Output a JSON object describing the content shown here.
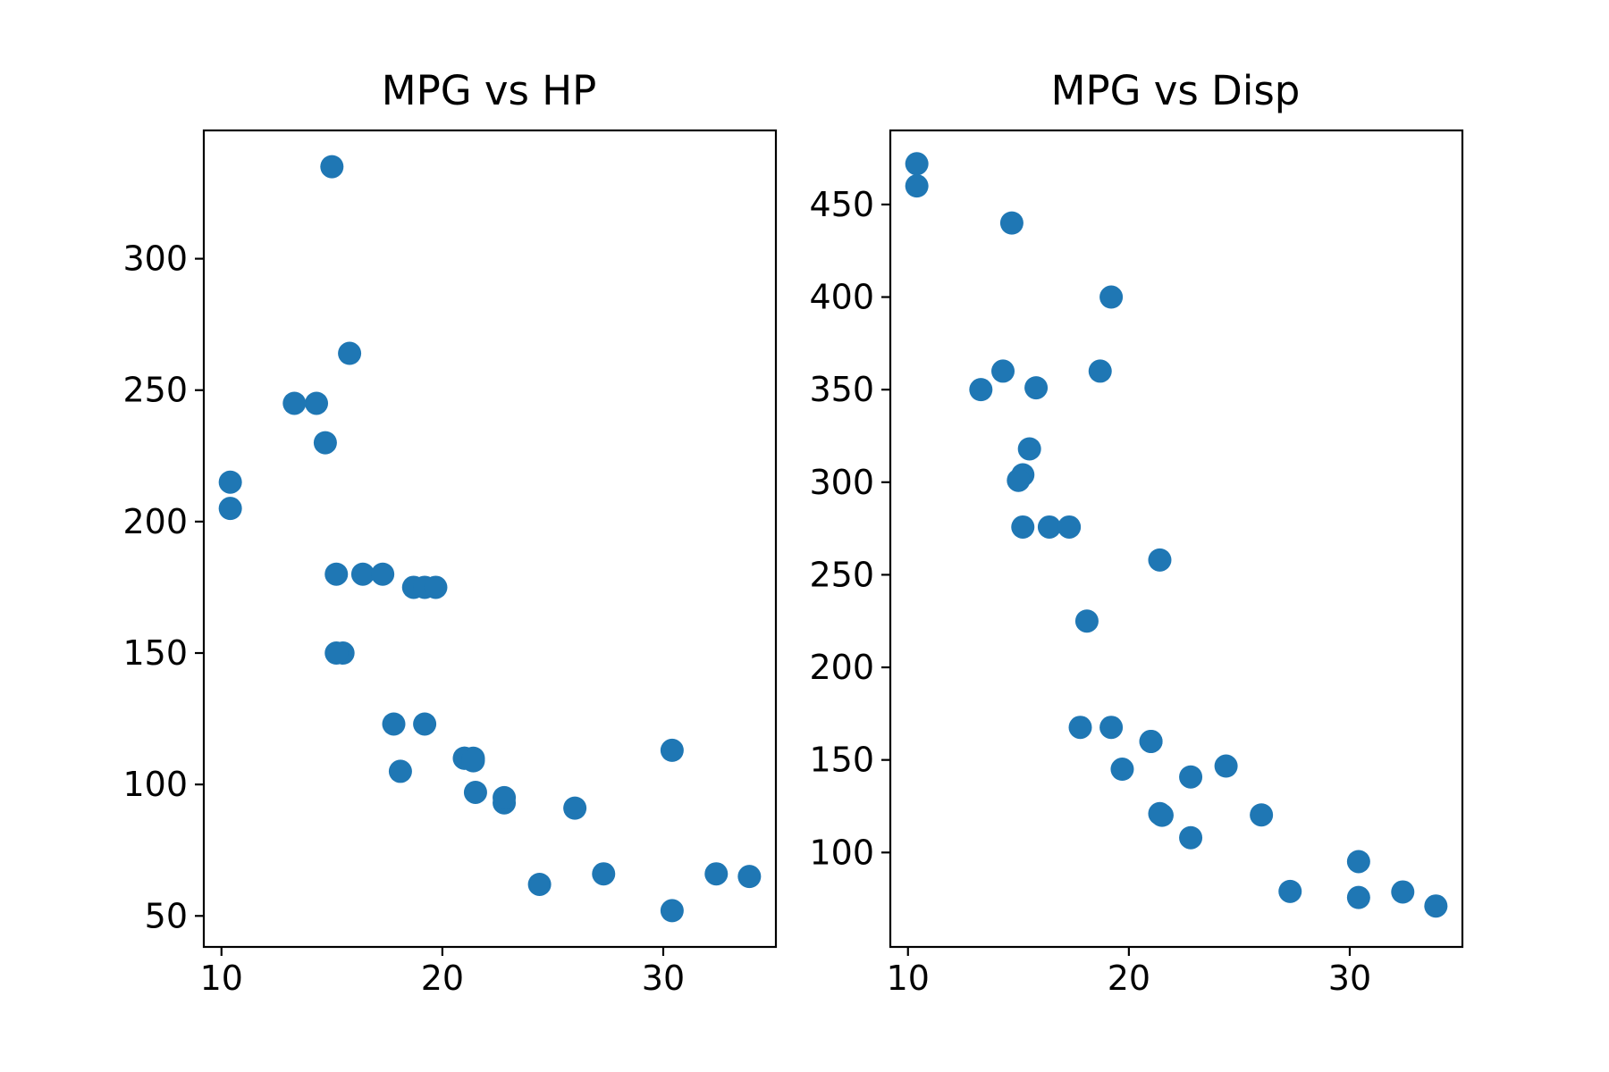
{
  "chart_data": [
    {
      "type": "scatter",
      "title": "MPG vs HP",
      "xlabel": "",
      "ylabel": "",
      "xlim": [
        9.2,
        35.1
      ],
      "ylim": [
        38.2,
        348.8
      ],
      "xticks": [
        10,
        20,
        30
      ],
      "yticks": [
        50,
        100,
        150,
        200,
        250,
        300
      ],
      "grid": false,
      "color": "#1f77b4",
      "x": [
        21.0,
        21.0,
        22.8,
        21.4,
        18.7,
        18.1,
        14.3,
        24.4,
        22.8,
        19.2,
        17.8,
        16.4,
        17.3,
        15.2,
        10.4,
        10.4,
        14.7,
        32.4,
        30.4,
        33.9,
        21.5,
        15.5,
        15.2,
        13.3,
        19.2,
        27.3,
        26.0,
        30.4,
        15.8,
        19.7,
        15.0,
        21.4
      ],
      "y": [
        110,
        110,
        93,
        110,
        175,
        105,
        245,
        62,
        95,
        123,
        123,
        180,
        180,
        180,
        205,
        215,
        230,
        66,
        52,
        65,
        97,
        150,
        150,
        245,
        175,
        66,
        91,
        113,
        264,
        175,
        335,
        109
      ]
    },
    {
      "type": "scatter",
      "title": "MPG vs Disp",
      "xlabel": "",
      "ylabel": "",
      "xlim": [
        9.2,
        35.1
      ],
      "ylim": [
        49.0,
        490.0
      ],
      "xticks": [
        10,
        20,
        30
      ],
      "yticks": [
        100,
        150,
        200,
        250,
        300,
        350,
        400,
        450
      ],
      "grid": false,
      "color": "#1f77b4",
      "x": [
        21.0,
        21.0,
        22.8,
        21.4,
        18.7,
        18.1,
        14.3,
        24.4,
        22.8,
        19.2,
        17.8,
        16.4,
        17.3,
        15.2,
        10.4,
        10.4,
        14.7,
        32.4,
        30.4,
        33.9,
        21.5,
        15.5,
        15.2,
        13.3,
        19.2,
        27.3,
        26.0,
        30.4,
        15.8,
        19.7,
        15.0,
        21.4
      ],
      "y": [
        160,
        160,
        108,
        258,
        360,
        225,
        360,
        146.7,
        140.8,
        167.6,
        167.6,
        275.8,
        275.8,
        275.8,
        472,
        460,
        440,
        78.7,
        75.7,
        71.1,
        120.1,
        318,
        304,
        350,
        400,
        79,
        120.3,
        95.1,
        351,
        145,
        301,
        121
      ]
    }
  ]
}
